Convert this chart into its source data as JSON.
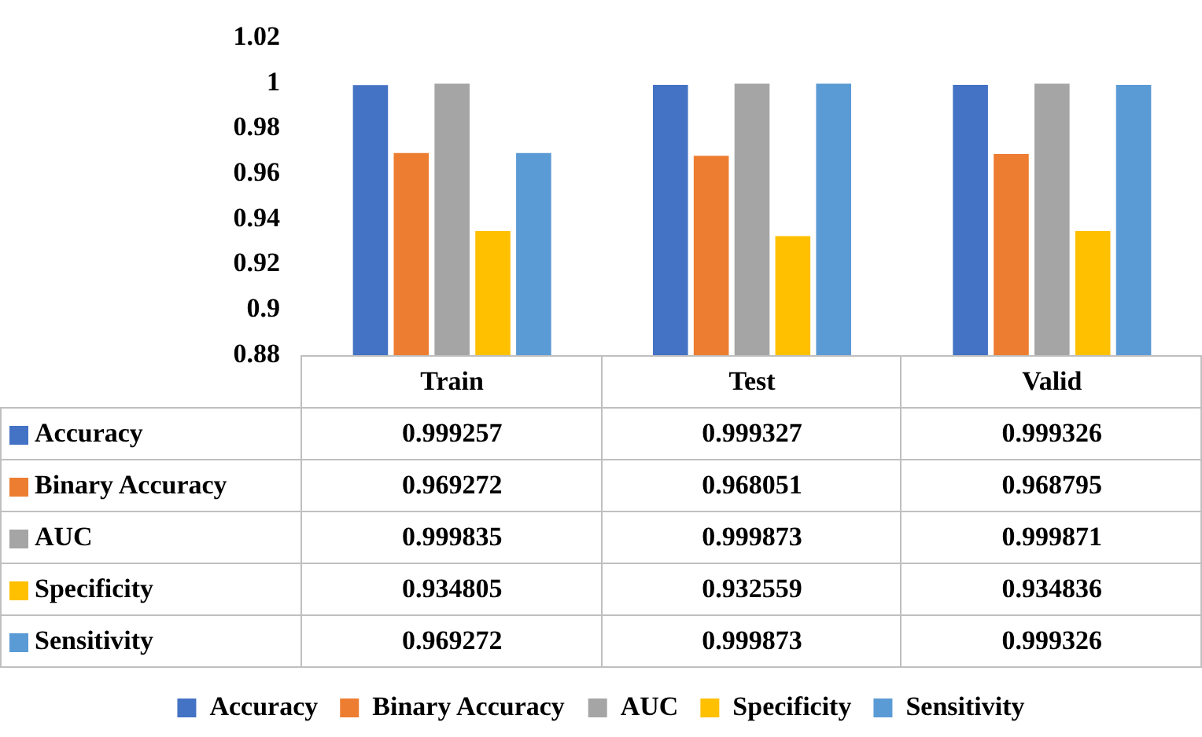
{
  "chart_data": {
    "type": "bar",
    "categories": [
      "Train",
      "Test",
      "Valid"
    ],
    "series": [
      {
        "name": "Accuracy",
        "color": "#4472c4",
        "values": [
          0.999257,
          0.999327,
          0.999326
        ]
      },
      {
        "name": "Binary Accuracy",
        "color": "#ed7d31",
        "values": [
          0.969272,
          0.968051,
          0.968795
        ]
      },
      {
        "name": "AUC",
        "color": "#a5a5a5",
        "values": [
          0.999835,
          0.999873,
          0.999871
        ]
      },
      {
        "name": "Specificity",
        "color": "#ffc000",
        "values": [
          0.934805,
          0.932559,
          0.934836
        ]
      },
      {
        "name": "Sensitivity",
        "color": "#5b9bd5",
        "values": [
          0.969272,
          0.999873,
          0.999326
        ]
      }
    ],
    "ylim": [
      0.88,
      1.02
    ],
    "yticks": [
      0.88,
      0.9,
      0.92,
      0.94,
      0.96,
      0.98,
      1,
      1.02
    ],
    "data_labels": true,
    "legend": "bottom",
    "grid": false
  }
}
